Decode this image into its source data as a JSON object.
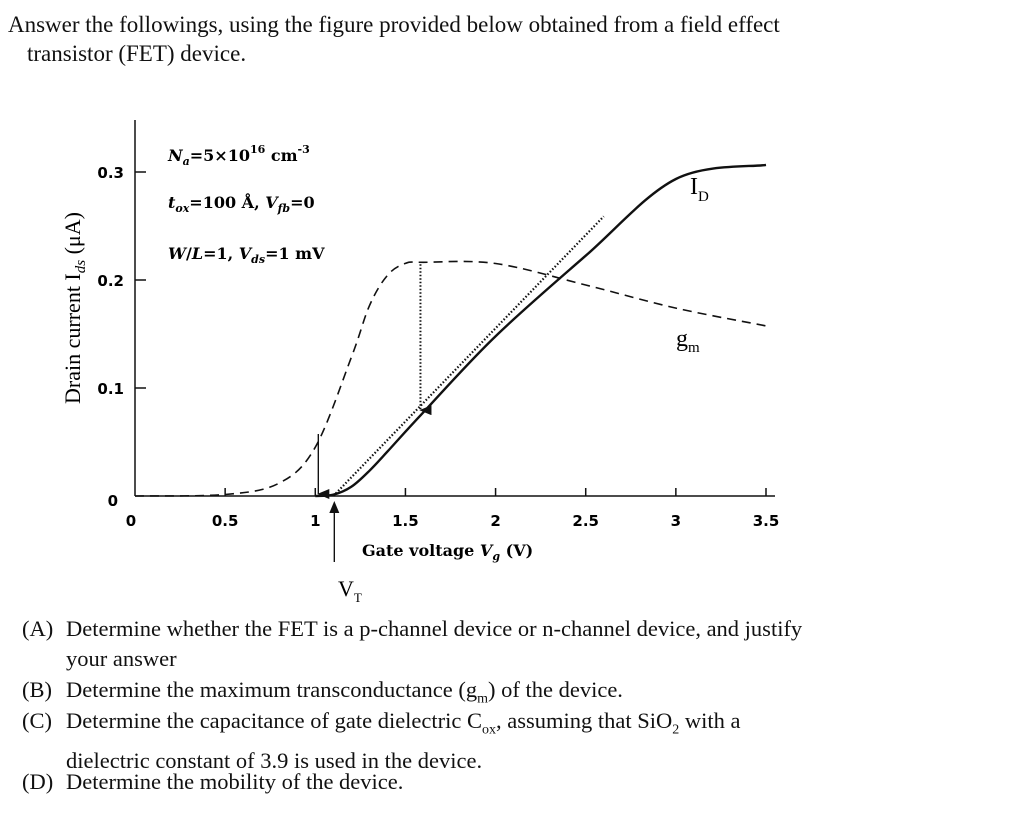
{
  "intro": {
    "line1": "Answer the followings, using the figure provided below obtained from a field effect",
    "line2": "transistor (FET) device."
  },
  "figure": {
    "ylabel": "Drain current I",
    "ylabel_sub": "ds",
    "ylabel_unit": " (μA)",
    "xlabel_text": "Gate voltage ",
    "xlabel_var": "V",
    "xlabel_sub": "g",
    "xlabel_unit": " (V)",
    "annotation1": "N",
    "annotation1_sub": "a",
    "annotation1_rest": "=5×10",
    "annotation1_sup": "16",
    "annotation1_unit": " cm",
    "annotation1_unit_sup": "-3",
    "annotation2_a": "t",
    "annotation2_a_sub": "ox",
    "annotation2_b": "=100 Å, ",
    "annotation2_c": "V",
    "annotation2_c_sub": "fb",
    "annotation2_d": "=0",
    "annotation3_a": "W",
    "annotation3_b": "/",
    "annotation3_c": "L",
    "annotation3_d": "=1, ",
    "annotation3_e": "V",
    "annotation3_e_sub": "ds",
    "annotation3_f": "=1 mV",
    "label_id": "I",
    "label_id_sub": "D",
    "label_gm": "g",
    "label_gm_sub": "m",
    "label_vt": "V",
    "label_vt_sub": "T",
    "x_ticks": [
      "0",
      "0.5",
      "1",
      "1.5",
      "2",
      "2.5",
      "3",
      "3.5"
    ],
    "y_ticks": [
      "0",
      "0.1",
      "0.2",
      "0.3"
    ]
  },
  "chart_data": {
    "type": "line",
    "xlabel": "Gate voltage Vg (V)",
    "ylabel": "Drain current Ids (μA)",
    "xlim": [
      0,
      3.5
    ],
    "ylim": [
      0,
      0.3
    ],
    "x_ticks": [
      0,
      0.5,
      1,
      1.5,
      2,
      2.5,
      3,
      3.5
    ],
    "y_ticks": [
      0,
      0.1,
      0.2,
      0.3
    ],
    "series": [
      {
        "name": "ID",
        "style": "solid",
        "x": [
          1.0,
          1.1,
          1.2,
          1.3,
          1.4,
          1.6,
          2.0,
          2.5,
          3.0,
          3.5
        ],
        "y": [
          0.0,
          0.0012,
          0.0085,
          0.0233,
          0.0411,
          0.0776,
          0.148,
          0.2225,
          0.2935,
          0.3066
        ]
      },
      {
        "name": "gm",
        "style": "dashed",
        "x": [
          0.0,
          0.5,
          0.8,
          1.0,
          1.2,
          1.3,
          1.4,
          1.5,
          1.6,
          2.0,
          2.5,
          3.0,
          3.5
        ],
        "y": [
          0.0,
          0.0014,
          0.0119,
          0.0452,
          0.1283,
          0.1761,
          0.2043,
          0.2154,
          0.2164,
          0.2153,
          0.1954,
          0.174,
          0.1575
        ]
      },
      {
        "name": "tangent",
        "style": "dotted",
        "x": [
          1.1,
          2.6
        ],
        "y": [
          0.0,
          0.2589
        ]
      }
    ],
    "annotations": [
      "Na=5×10^16 cm^-3",
      "tox=100 Å, Vfb=0",
      "W/L=1, Vds=1 mV",
      "VT"
    ]
  },
  "questions": [
    {
      "label": "(A)",
      "line1": "Determine whether the FET is a p-channel device or n-channel device, and justify",
      "line2": "your answer"
    },
    {
      "label": "(B)",
      "text_a": "Determine the maximum transconductance (g",
      "sub": "m",
      "text_b": ") of the device."
    },
    {
      "label": "(C)",
      "line1": "Determine the capacitance of gate dielectric C",
      "line1_sub": "ox",
      "line1_b": ", assuming that SiO",
      "line1_sub2": "2",
      "line1_c": " with a",
      "line2": "dielectric constant of 3.9 is used in the device."
    },
    {
      "label": "(D)",
      "line1": "Determine the mobility of the device."
    }
  ]
}
